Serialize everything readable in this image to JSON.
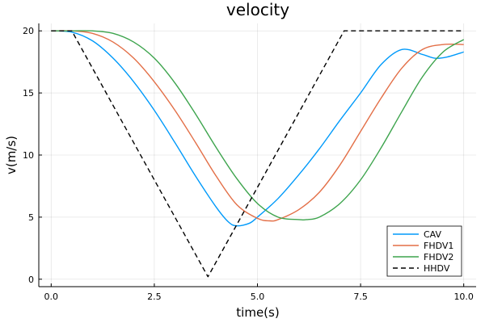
{
  "chart_data": {
    "type": "line",
    "title": "velocity",
    "xlabel": "time(s)",
    "ylabel": "v(m/s)",
    "xlim": [
      -0.3,
      10.3
    ],
    "ylim": [
      -0.6,
      20.6
    ],
    "xticks": [
      0,
      2.5,
      5,
      7.5,
      10
    ],
    "xtick_labels": [
      "0.0",
      "2.5",
      "5.0",
      "7.5",
      "10.0"
    ],
    "yticks": [
      0,
      5,
      10,
      15,
      20
    ],
    "ytick_labels": [
      "0",
      "5",
      "10",
      "15",
      "20"
    ],
    "grid": true,
    "legend_position": "bottom-right",
    "series": [
      {
        "name": "CAV",
        "color": "#009AFA",
        "dash": "solid",
        "x": [
          0,
          0.5,
          1.0,
          1.5,
          2.0,
          2.5,
          3.0,
          3.5,
          4.0,
          4.3,
          4.5,
          4.8,
          5.0,
          5.5,
          6.0,
          6.5,
          7.0,
          7.5,
          8.0,
          8.5,
          9.0,
          9.3,
          9.6,
          10.0
        ],
        "y": [
          20,
          19.9,
          19.2,
          17.8,
          15.9,
          13.6,
          11.0,
          8.3,
          5.8,
          4.6,
          4.3,
          4.5,
          5.0,
          6.5,
          8.4,
          10.5,
          12.8,
          15.0,
          17.3,
          18.5,
          18.1,
          17.8,
          17.9,
          18.3
        ]
      },
      {
        "name": "FHDV1",
        "color": "#E36F47",
        "dash": "solid",
        "x": [
          0,
          0.5,
          1.0,
          1.5,
          2.0,
          2.5,
          3.0,
          3.5,
          4.0,
          4.5,
          5.0,
          5.3,
          5.5,
          6.0,
          6.5,
          7.0,
          7.5,
          8.0,
          8.5,
          9.0,
          9.5,
          10.0
        ],
        "y": [
          20,
          20,
          19.8,
          19.1,
          17.8,
          15.9,
          13.6,
          11.0,
          8.3,
          6.0,
          4.9,
          4.7,
          4.8,
          5.6,
          7.0,
          9.2,
          11.9,
          14.6,
          17.0,
          18.5,
          18.9,
          18.9
        ]
      },
      {
        "name": "FHDV2",
        "color": "#3DA44D",
        "dash": "solid",
        "x": [
          0,
          0.5,
          1.0,
          1.5,
          2.0,
          2.5,
          3.0,
          3.5,
          4.0,
          4.5,
          5.0,
          5.5,
          6.0,
          6.2,
          6.5,
          7.0,
          7.5,
          8.0,
          8.5,
          9.0,
          9.5,
          10.0
        ],
        "y": [
          20,
          20,
          20,
          19.8,
          19.1,
          17.8,
          15.8,
          13.3,
          10.6,
          8.1,
          6.1,
          5.0,
          4.8,
          4.8,
          5.0,
          6.1,
          8.0,
          10.6,
          13.5,
          16.3,
          18.3,
          19.3
        ]
      },
      {
        "name": "HHDV",
        "color": "#000000",
        "dash": "dashed",
        "x": [
          0,
          0.5,
          3.8,
          7.1,
          10.0
        ],
        "y": [
          20,
          20,
          0.2,
          20,
          20
        ]
      }
    ]
  }
}
